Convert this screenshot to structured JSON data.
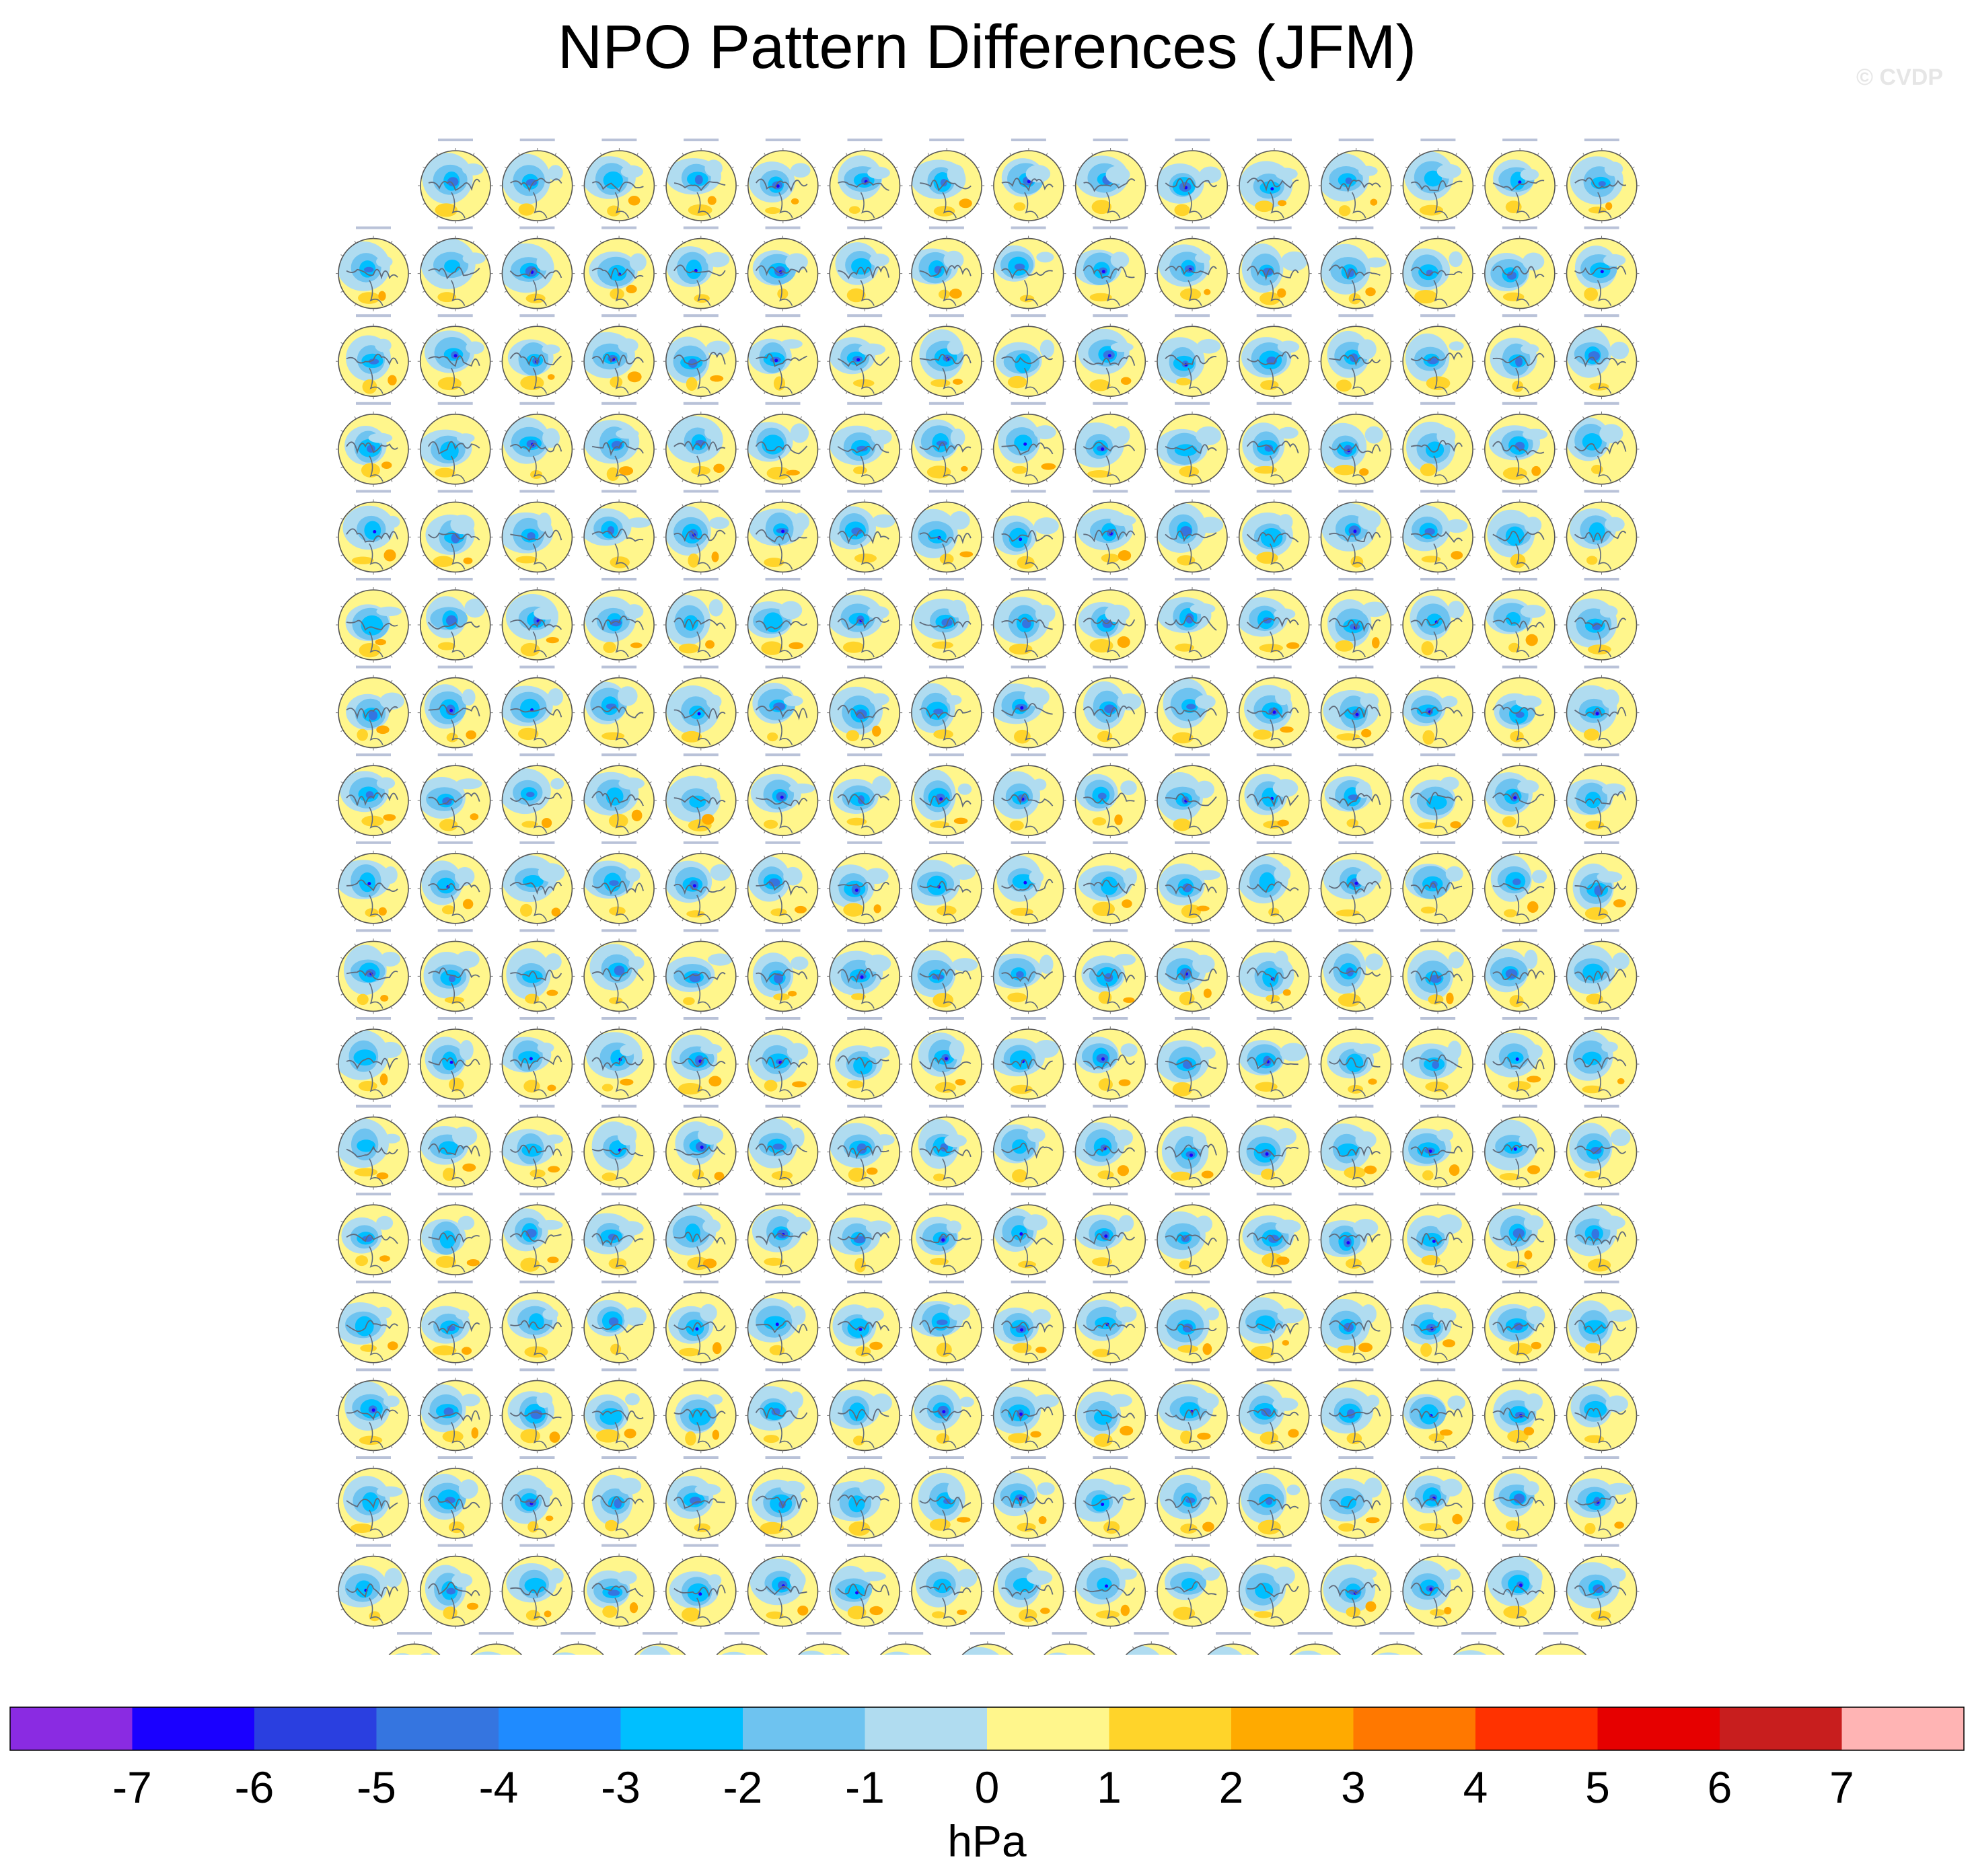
{
  "title": "NPO Pattern Differences (JFM)",
  "watermark": "© CVDP",
  "chart_data": {
    "type": "heatmap",
    "title": "NPO Pattern Differences (JFM)",
    "description_layout": "grid of polar-stereographic Northern Hemisphere maps (one per model simulation)",
    "panel_rows": [
      15,
      16,
      16,
      16,
      16,
      16,
      16,
      16,
      16,
      16,
      16,
      16,
      16,
      16,
      16,
      16,
      16,
      15
    ],
    "panel_count": 286,
    "colorbar": {
      "label": "hPa",
      "tick_labels": [
        "-7",
        "-6",
        "-5",
        "-4",
        "-3",
        "-2",
        "-1",
        "0",
        "1",
        "2",
        "3",
        "4",
        "5",
        "6",
        "7"
      ],
      "colors": [
        "#8a2be2",
        "#1a00ff",
        "#2a3fe0",
        "#3575e0",
        "#1f8bff",
        "#00bfff",
        "#6ec3f0",
        "#b0dcf0",
        "#fff68c",
        "#ffd42a",
        "#ffaa00",
        "#ff7800",
        "#ff3200",
        "#e60000",
        "#c81e1e",
        "#ffb4b4"
      ]
    }
  }
}
